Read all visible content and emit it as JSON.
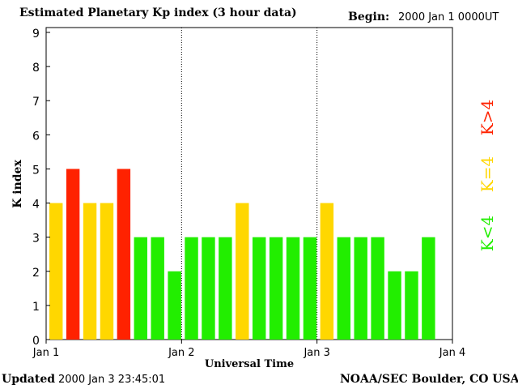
{
  "header": {
    "title": "Estimated Planetary Kp index (3 hour data)",
    "begin_label": "Begin:",
    "begin_value": "2000 Jan 1 0000UT"
  },
  "footer": {
    "updated_label": "Updated",
    "updated_value": "2000 Jan  3 23:45:01",
    "source": "NOAA/SEC Boulder, CO USA"
  },
  "colors": {
    "low": "#22ee00",
    "equal": "#ffd700",
    "high": "#ff2200"
  },
  "chart_data": {
    "type": "bar",
    "title": "Estimated Planetary Kp index (3 hour data)",
    "xlabel": "Universal Time",
    "ylabel": "K index",
    "ylim": [
      0,
      9
    ],
    "yticks": [
      "0",
      "1",
      "2",
      "3",
      "4",
      "5",
      "6",
      "7",
      "8",
      "9"
    ],
    "xticks": [
      "Jan 1",
      "Jan 2",
      "Jan 3",
      "Jan 4"
    ],
    "bins_per_day": 8,
    "values": [
      4,
      5,
      4,
      4,
      5,
      3,
      3,
      2,
      3,
      3,
      3,
      4,
      3,
      3,
      3,
      3,
      4,
      3,
      3,
      3,
      2,
      2,
      3
    ],
    "legend": [
      {
        "label": "K<4",
        "color": "#22ee00"
      },
      {
        "label": "K=4",
        "color": "#ffd700"
      },
      {
        "label": "K>4",
        "color": "#ff2200"
      }
    ],
    "legend_position": "right"
  }
}
